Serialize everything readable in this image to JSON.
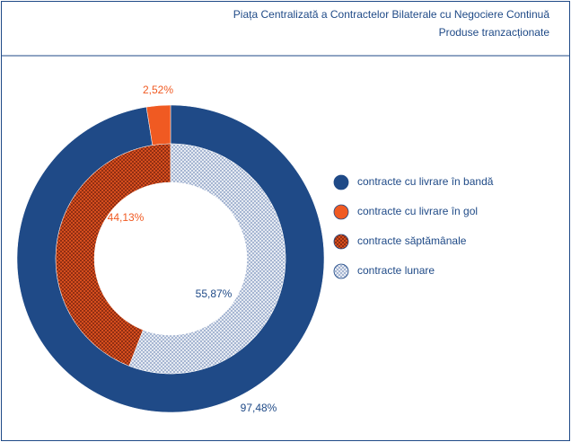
{
  "chart_data": {
    "type": "donut",
    "title": "Piața Centralizată a Contractelor Bilaterale cu Negociere Continuă",
    "subtitle": "Produse tranzacționate",
    "rings": [
      {
        "labels": [
          "contracte cu livrare în bandă",
          "contracte cu livrare în gol"
        ],
        "values": [
          97.48,
          2.52
        ],
        "value_labels": [
          "97,48%",
          "2,52%"
        ],
        "colors": [
          "#1f4a87",
          "#f05a22"
        ],
        "direction": "clockwise",
        "pattern": "none"
      },
      {
        "labels": [
          "contracte săptămânale",
          "contracte lunare"
        ],
        "values": [
          44.13,
          55.87
        ],
        "value_labels": [
          "44,13%",
          "55,87%"
        ],
        "colors": [
          "#f05a22",
          "#9fb0cf"
        ],
        "direction": "counterclockwise",
        "pattern": "crosshatch"
      }
    ]
  }
}
